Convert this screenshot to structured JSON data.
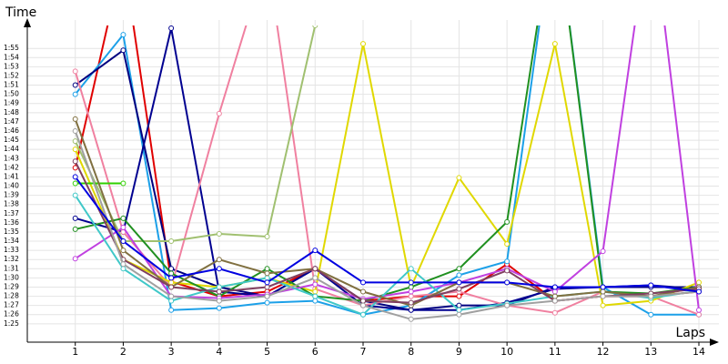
{
  "chart_data": {
    "type": "line",
    "y_title": "Time",
    "x_title": "Laps",
    "x": [
      1,
      2,
      3,
      4,
      5,
      6,
      7,
      8,
      9,
      10,
      11,
      12,
      13,
      14
    ],
    "xlim": [
      0,
      14
    ],
    "xticks": [
      1,
      2,
      3,
      4,
      5,
      6,
      7,
      8,
      9,
      10,
      11,
      12,
      13,
      14
    ],
    "ylim": [
      83,
      117.3
    ],
    "yticks": [
      {
        "value": 85,
        "label": "1:25"
      },
      {
        "value": 86,
        "label": "1:26"
      },
      {
        "value": 87,
        "label": "1:27"
      },
      {
        "value": 88,
        "label": "1:28"
      },
      {
        "value": 89,
        "label": "1:29"
      },
      {
        "value": 90,
        "label": "1:30"
      },
      {
        "value": 91,
        "label": "1:31"
      },
      {
        "value": 92,
        "label": "1:32"
      },
      {
        "value": 93,
        "label": "1:33"
      },
      {
        "value": 94,
        "label": "1:34"
      },
      {
        "value": 95,
        "label": "1:35"
      },
      {
        "value": 96,
        "label": "1:36"
      },
      {
        "value": 97,
        "label": "1:37"
      },
      {
        "value": 98,
        "label": "1:38"
      },
      {
        "value": 99,
        "label": "1:39"
      },
      {
        "value": 100,
        "label": "1:40"
      },
      {
        "value": 101,
        "label": "1:41"
      },
      {
        "value": 102,
        "label": "1:42"
      },
      {
        "value": 103,
        "label": "1:43"
      },
      {
        "value": 104,
        "label": "1:44"
      },
      {
        "value": 105,
        "label": "1:45"
      },
      {
        "value": 106,
        "label": "1:46"
      },
      {
        "value": 107,
        "label": "1:47"
      },
      {
        "value": 108,
        "label": "1:48"
      },
      {
        "value": 109,
        "label": "1:49"
      },
      {
        "value": 110,
        "label": "1:50"
      },
      {
        "value": 111,
        "label": "1:51"
      },
      {
        "value": 112,
        "label": "1:52"
      },
      {
        "value": 113,
        "label": "1:53"
      },
      {
        "value": 114,
        "label": "1:54"
      },
      {
        "value": 115,
        "label": "1:55"
      }
    ],
    "grid": true,
    "series": [
      {
        "color": "#e00000",
        "values": [
          102,
          125,
          89.6,
          88,
          88.5,
          91,
          87.5,
          88,
          88,
          91.5,
          87.5,
          88,
          88,
          88.5
        ]
      },
      {
        "color": "#1ca0e8",
        "values": [
          110,
          116.5,
          86.5,
          86.7,
          87.3,
          87.5,
          86,
          87,
          90.3,
          91.8,
          130,
          89,
          86,
          86
        ]
      },
      {
        "color": "#000080",
        "values": [
          111,
          114.8,
          91,
          89,
          88,
          91,
          87.5,
          86.5,
          87,
          87,
          89,
          89,
          89,
          89
        ]
      },
      {
        "color": "#000090",
        "values": [
          96.5,
          95,
          117.2,
          88.5,
          88,
          91,
          87,
          86.5,
          86.5,
          87.3,
          88.8,
          89,
          89.2,
          88.8
        ]
      },
      {
        "color": "#f080a0",
        "values": [
          112.5,
          95,
          89,
          107.9,
          125,
          88.8,
          87,
          88,
          88.5,
          87,
          86.2,
          88.5,
          88,
          86
        ]
      },
      {
        "color": "#a0c070",
        "values": [
          104.9,
          94,
          94,
          94.8,
          94.5,
          117.5,
          null,
          null,
          null,
          null,
          null,
          null,
          null,
          null
        ]
      },
      {
        "color": "#e0d800",
        "values": [
          104,
          92,
          89.5,
          89,
          90,
          88.5,
          115.5,
          89,
          100.9,
          93.7,
          115.5,
          87,
          87.5,
          89.5
        ]
      },
      {
        "color": "#209020",
        "values": [
          95.3,
          96.5,
          90.5,
          88,
          91,
          88,
          87.5,
          89,
          91,
          96.1,
          130,
          88.5,
          88.3,
          89
        ]
      },
      {
        "color": "#c040e0",
        "values": [
          92.1,
          95.5,
          88,
          87.8,
          88.2,
          89.3,
          87.7,
          88.5,
          89.5,
          91,
          88.5,
          92.9,
          130,
          86.5
        ]
      },
      {
        "color": "#40c8c8",
        "values": [
          99,
          91,
          87.5,
          89,
          90,
          88,
          86,
          91,
          86.5,
          87.2,
          88,
          88.5,
          87.8,
          88.6
        ]
      },
      {
        "color": "#30d000",
        "values": [
          100.3,
          100.3,
          null,
          null,
          null,
          null,
          null,
          null,
          null,
          null,
          null,
          null,
          null,
          null
        ]
      },
      {
        "color": "#807040",
        "values": [
          107.3,
          93,
          89,
          92,
          90.5,
          91,
          88.5,
          87,
          89.5,
          89.5,
          88,
          88.5,
          88,
          89
        ]
      },
      {
        "color": "#804060",
        "values": [
          102.7,
          92,
          89,
          88.5,
          89,
          91,
          87.5,
          87.3,
          88.8,
          90.8,
          87.5,
          88,
          88.3,
          88.8
        ]
      },
      {
        "color": "#a0a0a0",
        "values": [
          106,
          91.5,
          88,
          87.5,
          88,
          90,
          87,
          85.5,
          86,
          87,
          87.5,
          88,
          88,
          88.5
        ]
      },
      {
        "color": "#0000e0",
        "values": [
          101,
          94,
          90,
          91,
          89.5,
          93,
          89.5,
          89.5,
          89.5,
          89.5,
          89,
          89,
          89.2,
          88.5
        ]
      }
    ]
  }
}
